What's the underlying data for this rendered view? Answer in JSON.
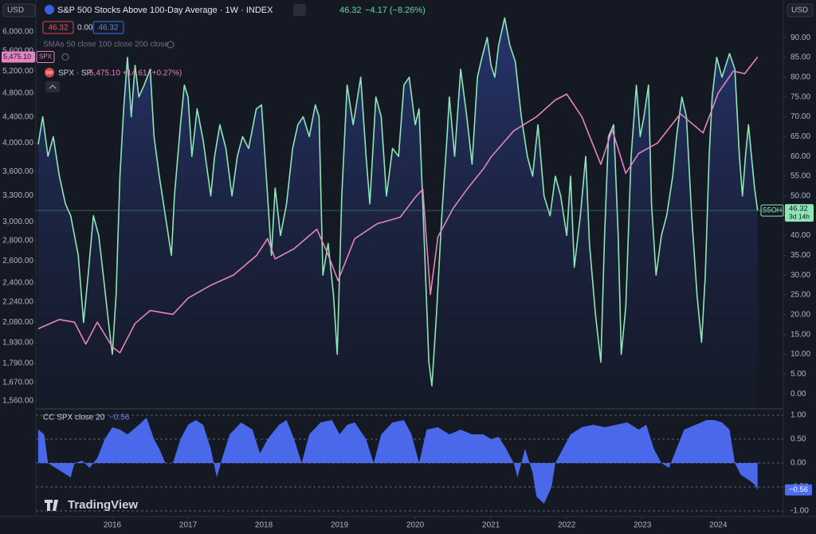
{
  "header": {
    "currency_left": "USD",
    "title": "S&P 500 Stocks Above 100-Day Average · 1W · INDEX",
    "last": "46.32",
    "change": "−4.17 (−8.26%)",
    "bid": "46.32",
    "spread": "0.00",
    "ask": "46.32",
    "sma_legend": "SMAs 50 close 100 close 200 close",
    "spx_badge": "5,475.10",
    "spx_badge_tag": "SPX",
    "spx_icon": "500",
    "spx_value": "5,475.10 +14.61 (+0.27%)",
    "currency_right": "USD",
    "last_badge": "46.32",
    "countdown": "3d 14h",
    "cc_value": "−0.56",
    "cc_badge": "−0.56",
    "watermark": "TradingView"
  },
  "chart_data": [
    {
      "type": "line",
      "xlim": [
        2014.99,
        2024.86
      ],
      "ylim": [
        -3.6,
        98.5
      ],
      "yticks": [
        {
          "value": 0,
          "label": "0.00"
        },
        {
          "value": 5,
          "label": "5.00"
        },
        {
          "value": 10,
          "label": "10.00"
        },
        {
          "value": 15,
          "label": "15.00"
        },
        {
          "value": 20,
          "label": "20.00"
        },
        {
          "value": 25,
          "label": "25.00"
        },
        {
          "value": 30,
          "label": "30.00"
        },
        {
          "value": 35,
          "label": "35.00"
        },
        {
          "value": 40,
          "label": "40.00"
        },
        {
          "value": 45,
          "label": "45.00"
        },
        {
          "value": 50,
          "label": "50.00"
        },
        {
          "value": 55,
          "label": "55.00"
        },
        {
          "value": 60,
          "label": "60.00"
        },
        {
          "value": 65,
          "label": "65.00"
        },
        {
          "value": 70,
          "label": "70.00"
        },
        {
          "value": 75,
          "label": "75.00"
        },
        {
          "value": 80,
          "label": "80.00"
        },
        {
          "value": 85,
          "label": "85.00"
        },
        {
          "value": 90,
          "label": "90.00"
        }
      ],
      "y2lim": [
        1520,
        6643
      ],
      "y2log": true,
      "y2ticks": [
        {
          "value": 1560,
          "label": "1,560.00"
        },
        {
          "value": 1670,
          "label": "1,670.00"
        },
        {
          "value": 1790,
          "label": "1,790.00"
        },
        {
          "value": 1930,
          "label": "1,930.00"
        },
        {
          "value": 2080,
          "label": "2,080.00"
        },
        {
          "value": 2240,
          "label": "2,240.00"
        },
        {
          "value": 2400,
          "label": "2,400.00"
        },
        {
          "value": 2600,
          "label": "2,600.00"
        },
        {
          "value": 2800,
          "label": "2,800.00"
        },
        {
          "value": 3000,
          "label": "3,000.00"
        },
        {
          "value": 3300,
          "label": "3,300.00"
        },
        {
          "value": 3600,
          "label": "3,600.00"
        },
        {
          "value": 4000,
          "label": "4,000.00"
        },
        {
          "value": 4400,
          "label": "4,400.00"
        },
        {
          "value": 4800,
          "label": "4,800.00"
        },
        {
          "value": 5200,
          "label": "5,200.00"
        },
        {
          "value": 5600,
          "label": "5,600.00"
        },
        {
          "value": 6000,
          "label": "6,000.00"
        }
      ],
      "series": [
        {
          "name": "S5OH",
          "color": "#8ee6b8",
          "area": true,
          "x": [
            2015.02,
            2015.08,
            2015.15,
            2015.22,
            2015.3,
            2015.38,
            2015.45,
            2015.55,
            2015.62,
            2015.68,
            2015.75,
            2015.82,
            2015.88,
            2015.95,
            2016.0,
            2016.05,
            2016.1,
            2016.15,
            2016.2,
            2016.25,
            2016.3,
            2016.35,
            2016.42,
            2016.5,
            2016.55,
            2016.62,
            2016.7,
            2016.78,
            2016.82,
            2016.9,
            2016.95,
            2017.0,
            2017.05,
            2017.12,
            2017.2,
            2017.3,
            2017.35,
            2017.42,
            2017.5,
            2017.58,
            2017.65,
            2017.72,
            2017.8,
            2017.9,
            2017.97,
            2018.05,
            2018.1,
            2018.15,
            2018.22,
            2018.3,
            2018.38,
            2018.45,
            2018.52,
            2018.6,
            2018.68,
            2018.73,
            2018.78,
            2018.85,
            2018.92,
            2018.97,
            2019.03,
            2019.1,
            2019.18,
            2019.28,
            2019.35,
            2019.4,
            2019.48,
            2019.55,
            2019.62,
            2019.7,
            2019.78,
            2019.85,
            2019.92,
            2020.0,
            2020.05,
            2020.12,
            2020.18,
            2020.22,
            2020.28,
            2020.35,
            2020.42,
            2020.45,
            2020.52,
            2020.6,
            2020.68,
            2020.75,
            2020.82,
            2020.88,
            2020.95,
            2021.0,
            2021.05,
            2021.1,
            2021.18,
            2021.25,
            2021.32,
            2021.4,
            2021.48,
            2021.55,
            2021.62,
            2021.7,
            2021.78,
            2021.85,
            2021.92,
            2022.0,
            2022.05,
            2022.1,
            2022.18,
            2022.25,
            2022.3,
            2022.38,
            2022.45,
            2022.5,
            2022.55,
            2022.62,
            2022.68,
            2022.72,
            2022.78,
            2022.85,
            2022.92,
            2022.97,
            2023.02,
            2023.08,
            2023.12,
            2023.18,
            2023.25,
            2023.32,
            2023.4,
            2023.45,
            2023.52,
            2023.58,
            2023.65,
            2023.72,
            2023.78,
            2023.83,
            2023.88,
            2023.92,
            2023.98,
            2024.05,
            2024.1,
            2024.15,
            2024.22,
            2024.28,
            2024.32,
            2024.36,
            2024.4,
            2024.45,
            2024.48,
            2024.52
          ],
          "values": [
            63,
            70,
            60,
            65,
            55,
            48,
            45,
            35,
            18,
            30,
            45,
            40,
            30,
            18,
            10,
            25,
            55,
            72,
            85,
            70,
            83,
            75,
            78,
            82,
            65,
            55,
            45,
            35,
            50,
            68,
            78,
            75,
            60,
            72,
            64,
            50,
            60,
            68,
            62,
            50,
            60,
            65,
            62,
            72,
            73,
            50,
            35,
            52,
            40,
            48,
            62,
            68,
            70,
            65,
            73,
            70,
            30,
            38,
            25,
            10,
            50,
            78,
            68,
            80,
            60,
            48,
            75,
            70,
            50,
            62,
            60,
            78,
            80,
            68,
            72,
            38,
            8,
            2,
            20,
            45,
            65,
            75,
            60,
            82,
            70,
            58,
            80,
            85,
            90,
            83,
            80,
            88,
            95,
            88,
            84,
            70,
            60,
            55,
            68,
            50,
            45,
            55,
            50,
            40,
            55,
            32,
            45,
            60,
            38,
            20,
            8,
            40,
            65,
            68,
            40,
            10,
            22,
            60,
            78,
            65,
            70,
            78,
            48,
            30,
            40,
            45,
            55,
            65,
            75,
            70,
            45,
            25,
            13,
            30,
            60,
            75,
            85,
            80,
            83,
            86,
            82,
            60,
            50,
            60,
            68,
            58,
            52,
            46.32
          ]
        },
        {
          "name": "SPX · SP",
          "color": "#e584bf",
          "axis": "y2",
          "x": [
            2015.02,
            2015.3,
            2015.5,
            2015.65,
            2015.8,
            2016.0,
            2016.1,
            2016.3,
            2016.5,
            2016.8,
            2017.0,
            2017.3,
            2017.6,
            2017.9,
            2018.05,
            2018.15,
            2018.4,
            2018.7,
            2018.85,
            2018.98,
            2019.2,
            2019.5,
            2019.8,
            2020.0,
            2020.1,
            2020.2,
            2020.3,
            2020.5,
            2020.7,
            2020.9,
            2021.0,
            2021.3,
            2021.6,
            2021.85,
            2022.0,
            2022.2,
            2022.45,
            2022.6,
            2022.78,
            2022.95,
            2023.2,
            2023.5,
            2023.8,
            2024.0,
            2024.2,
            2024.35,
            2024.52
          ],
          "values": [
            2030,
            2100,
            2080,
            1920,
            2080,
            1900,
            1860,
            2070,
            2170,
            2140,
            2270,
            2380,
            2470,
            2650,
            2820,
            2620,
            2720,
            2920,
            2660,
            2420,
            2820,
            2980,
            3050,
            3280,
            3380,
            2300,
            2840,
            3150,
            3400,
            3640,
            3800,
            4180,
            4400,
            4680,
            4780,
            4400,
            3700,
            4200,
            3580,
            3850,
            4000,
            4450,
            4150,
            4800,
            5200,
            5150,
            5475.1
          ]
        }
      ]
    },
    {
      "type": "area",
      "xlim": [
        2014.99,
        2024.86
      ],
      "ylim": [
        -1.067,
        1.1
      ],
      "grid": true,
      "yticks": [
        {
          "value": -1,
          "label": "-1.00"
        },
        {
          "value": -0.5,
          "label": "-0.50"
        },
        {
          "value": 0,
          "label": "0.00"
        },
        {
          "value": 0.5,
          "label": "0.50"
        },
        {
          "value": 1,
          "label": "1.00"
        }
      ],
      "xticks": [
        2016,
        2017,
        2018,
        2019,
        2020,
        2021,
        2022,
        2023,
        2024
      ],
      "series": [
        {
          "name": "CC SPX close 20",
          "color": "#4c6ef5",
          "x": [
            2015.02,
            2015.1,
            2015.15,
            2015.25,
            2015.35,
            2015.45,
            2015.5,
            2015.6,
            2015.7,
            2015.8,
            2015.9,
            2016.0,
            2016.1,
            2016.2,
            2016.35,
            2016.45,
            2016.55,
            2016.62,
            2016.7,
            2016.8,
            2016.9,
            2017.0,
            2017.1,
            2017.2,
            2017.3,
            2017.38,
            2017.45,
            2017.55,
            2017.7,
            2017.85,
            2017.95,
            2018.05,
            2018.2,
            2018.3,
            2018.4,
            2018.5,
            2018.6,
            2018.75,
            2018.9,
            2019.0,
            2019.1,
            2019.2,
            2019.35,
            2019.45,
            2019.55,
            2019.7,
            2019.85,
            2019.95,
            2020.05,
            2020.15,
            2020.3,
            2020.45,
            2020.6,
            2020.75,
            2020.9,
            2021.0,
            2021.1,
            2021.2,
            2021.3,
            2021.35,
            2021.45,
            2021.55,
            2021.6,
            2021.7,
            2021.8,
            2021.85,
            2021.95,
            2022.05,
            2022.2,
            2022.35,
            2022.5,
            2022.65,
            2022.8,
            2022.95,
            2023.05,
            2023.15,
            2023.25,
            2023.35,
            2023.45,
            2023.55,
            2023.7,
            2023.85,
            2023.95,
            2024.05,
            2024.15,
            2024.22,
            2024.3,
            2024.4,
            2024.48,
            2024.52
          ],
          "values": [
            0.7,
            0.6,
            0.0,
            -0.1,
            -0.2,
            -0.3,
            0.0,
            0.05,
            -0.1,
            0.1,
            0.5,
            0.75,
            0.7,
            0.6,
            0.8,
            0.95,
            0.5,
            0.3,
            0.0,
            0.0,
            0.5,
            0.8,
            0.9,
            0.8,
            0.3,
            -0.3,
            0.1,
            0.6,
            0.85,
            0.7,
            0.2,
            0.5,
            0.8,
            0.9,
            0.5,
            0.0,
            0.6,
            0.85,
            0.9,
            0.6,
            0.8,
            0.85,
            0.5,
            0.0,
            0.6,
            0.85,
            0.9,
            0.6,
            0.0,
            0.7,
            0.75,
            0.6,
            0.7,
            0.6,
            0.6,
            0.5,
            0.55,
            0.3,
            0.0,
            -0.3,
            0.3,
            -0.2,
            -0.7,
            -0.85,
            -0.5,
            0.0,
            0.3,
            0.6,
            0.75,
            0.8,
            0.75,
            0.8,
            0.85,
            0.7,
            0.8,
            0.3,
            0.0,
            -0.1,
            0.3,
            0.7,
            0.8,
            0.9,
            0.9,
            0.85,
            0.7,
            0.0,
            -0.25,
            -0.35,
            -0.45,
            -0.56
          ]
        }
      ]
    }
  ]
}
